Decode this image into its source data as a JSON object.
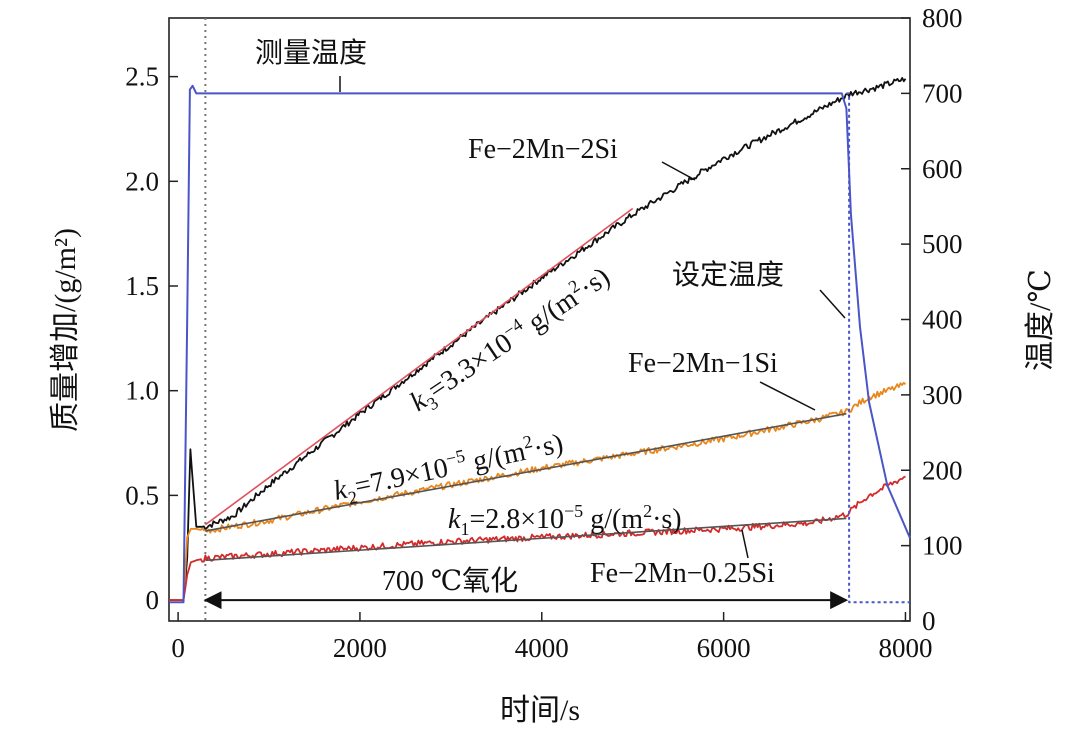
{
  "chart_data": {
    "type": "line",
    "xlabel": "时间/s",
    "ylabel_left": "质量增加/(g/m²)",
    "ylabel_right": "温度/℃",
    "xlim": [
      -100,
      8050
    ],
    "ylim_left": [
      -0.1,
      2.78
    ],
    "ylim_right": [
      0,
      800
    ],
    "x_ticks": [
      0,
      2000,
      4000,
      6000,
      8000
    ],
    "y_ticks_left": [
      0,
      0.5,
      1.0,
      1.5,
      2.0,
      2.5
    ],
    "y_ticks_left_labels": [
      "0",
      "0.5",
      "1.0",
      "1.5",
      "2.0",
      "2.5"
    ],
    "y_ticks_right": [
      0,
      100,
      200,
      300,
      400,
      500,
      600,
      700,
      800
    ],
    "grid": false,
    "colors": {
      "fe_2mn_2si": "#111111",
      "fe_2mn_1si": "#e8871e",
      "fe_2mn_025si": "#d42a2a",
      "temperature": "#4a55c8",
      "fit": "#555555",
      "fit_k3": "#e0505a"
    },
    "series": [
      {
        "name": "Fe−2Mn−2Si",
        "axis": "left",
        "x": [
          -100,
          60,
          100,
          135,
          200,
          300,
          600,
          1000,
          2000,
          3000,
          4000,
          5000,
          6000,
          7000,
          7400,
          7700,
          8000
        ],
        "y": [
          0.0,
          0.0,
          0.2,
          0.72,
          0.35,
          0.35,
          0.4,
          0.55,
          0.89,
          1.22,
          1.54,
          1.84,
          2.11,
          2.33,
          2.42,
          2.45,
          2.49
        ]
      },
      {
        "name": "Fe−2Mn−1Si",
        "axis": "left",
        "x": [
          -100,
          60,
          100,
          140,
          200,
          300,
          1000,
          2000,
          3000,
          4000,
          5000,
          6000,
          7000,
          7350,
          7600,
          8000
        ],
        "y": [
          0.0,
          0.0,
          0.3,
          0.34,
          0.34,
          0.33,
          0.38,
          0.47,
          0.55,
          0.63,
          0.7,
          0.77,
          0.86,
          0.9,
          0.97,
          1.03
        ]
      },
      {
        "name": "Fe−2Mn−0.25Si",
        "axis": "left",
        "x": [
          -100,
          60,
          100,
          140,
          200,
          300,
          1000,
          2000,
          3000,
          4000,
          5000,
          6000,
          7000,
          7350,
          7600,
          8000
        ],
        "y": [
          0.0,
          0.0,
          0.12,
          0.18,
          0.19,
          0.2,
          0.22,
          0.25,
          0.28,
          0.3,
          0.32,
          0.34,
          0.37,
          0.41,
          0.5,
          0.59
        ]
      },
      {
        "name": "测量温度",
        "axis": "right",
        "x": [
          -100,
          60,
          100,
          130,
          160,
          200,
          7300,
          7350,
          7400,
          7500,
          7600,
          7800,
          8050
        ],
        "y": [
          25,
          25,
          400,
          705,
          710,
          700,
          700,
          680,
          540,
          390,
          290,
          180,
          110
        ]
      },
      {
        "name": "设定温度",
        "axis": "right",
        "x": [
          7350,
          7380,
          7380,
          8050
        ],
        "y": [
          700,
          700,
          25,
          25
        ]
      }
    ],
    "fits": [
      {
        "label_k": "k",
        "label_sub": "3",
        "label_rest": "=3.3×10",
        "label_exp": "−4",
        "label_unit": " g/(m",
        "label_unit_exp": "2",
        "label_tail": "·s)",
        "x": [
          300,
          5000
        ],
        "y": [
          0.36,
          1.87
        ]
      },
      {
        "label_k": "k",
        "label_sub": "2",
        "label_rest": "=7.9×10",
        "label_exp": "−5",
        "label_unit": " g/(m",
        "label_unit_exp": "2",
        "label_tail": "·s)",
        "x": [
          300,
          7350
        ],
        "y": [
          0.33,
          0.89
        ]
      },
      {
        "label_k": "k",
        "label_sub": "1",
        "label_rest": "=2.8×10",
        "label_exp": "−5",
        "label_unit": " g/(m",
        "label_unit_exp": "2",
        "label_tail": "·s)",
        "x": [
          300,
          7350
        ],
        "y": [
          0.19,
          0.39
        ]
      }
    ],
    "annotations": {
      "measured_temp": "测量温度",
      "set_temp": "设定温度",
      "oxidation_period": "700 ℃氧化",
      "oxidation_range": [
        300,
        7350
      ],
      "dotted_vline_x": 300,
      "labels": {
        "s2": "Fe−2Mn−2Si",
        "s1": "Fe−2Mn−1Si",
        "s025": "Fe−2Mn−0.25Si"
      }
    }
  }
}
